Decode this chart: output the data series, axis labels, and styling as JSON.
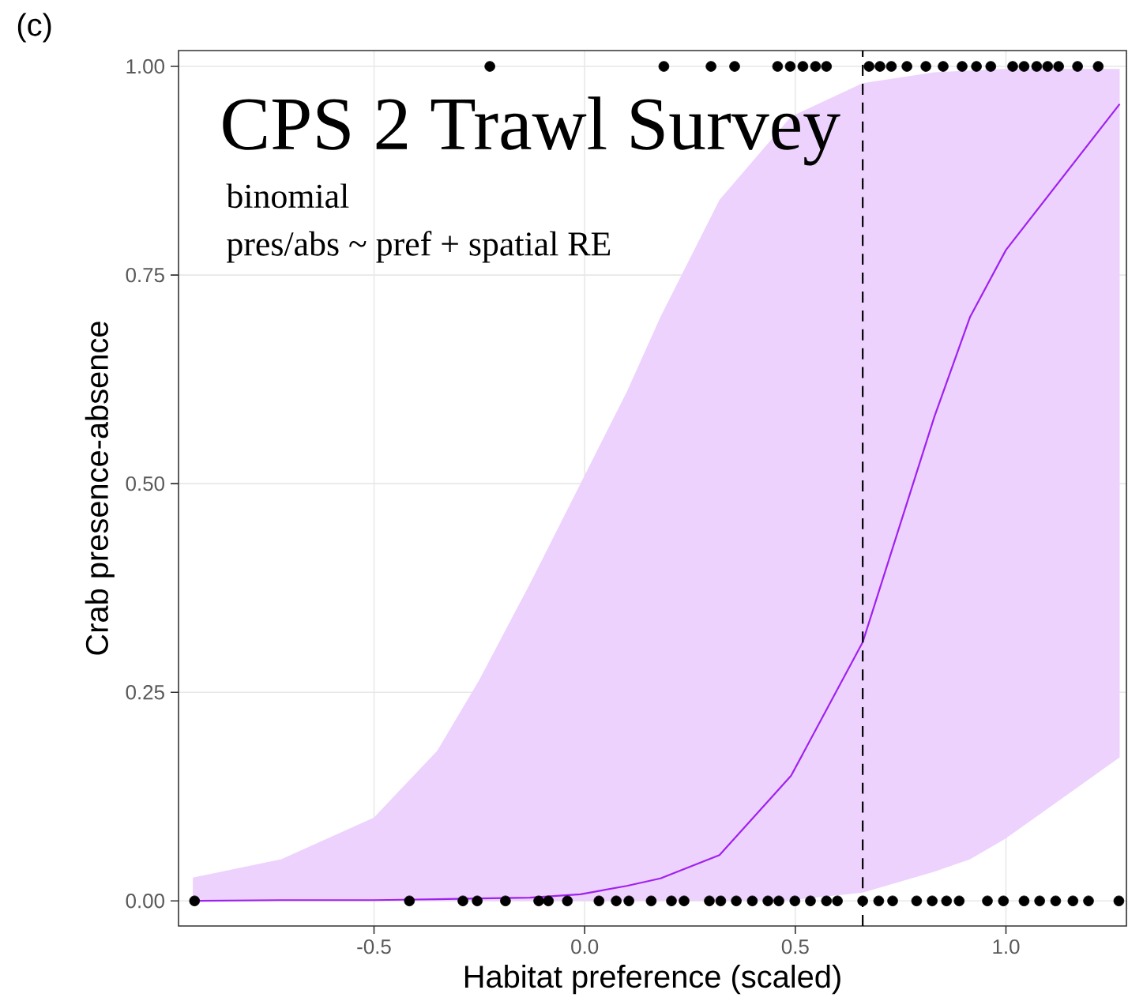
{
  "chart_data": {
    "type": "line",
    "title": "CPS 2 Trawl Survey",
    "subtitle": "binomial",
    "xlabel": "Habitat preference (scaled)",
    "ylabel": "Crab presence-absence",
    "annotations": [
      "pres/abs ~ pref + spatial RE",
      "(c)"
    ],
    "xlim": [
      -0.964,
      1.286
    ],
    "ylim": [
      -0.03,
      1.019
    ],
    "xticks": [
      {
        "value": -0.5,
        "label": "-0.5"
      },
      {
        "value": 0,
        "label": "0.0"
      },
      {
        "value": 0.5,
        "label": "0.5"
      },
      {
        "value": 1,
        "label": "1.0"
      }
    ],
    "yticks": [
      {
        "value": 0,
        "label": "0.00"
      },
      {
        "value": 0.25,
        "label": "0.25"
      },
      {
        "value": 0.5,
        "label": "0.50"
      },
      {
        "value": 0.75,
        "label": "0.75"
      },
      {
        "value": 1,
        "label": "1.00"
      }
    ],
    "grid": true,
    "ref_lines": [
      {
        "axis": "x",
        "value": 0.66,
        "label": null,
        "color": "#000000",
        "line_style": "dashed"
      }
    ],
    "series": [
      {
        "color": "#a020f0",
        "marker": "none",
        "line_style": "solid",
        "x": [
          -0.93,
          -0.72,
          -0.5,
          -0.35,
          -0.25,
          -0.13,
          -0.01,
          0.1,
          0.18,
          0.32,
          0.49,
          0.66,
          0.83,
          0.915,
          1.0,
          1.27
        ],
        "values": [
          0,
          0.001,
          0.001,
          0.002,
          0.003,
          0.004,
          0.008,
          0.018,
          0.027,
          0.055,
          0.15,
          0.31,
          0.58,
          0.7,
          0.78,
          0.955
        ],
        "lower": [
          0,
          0,
          0,
          0,
          0,
          0,
          0,
          0,
          0,
          0,
          0.001,
          0.01,
          0.035,
          0.05,
          0.075,
          0.172
        ],
        "upper": [
          0.028,
          0.05,
          0.1,
          0.18,
          0.265,
          0.38,
          0.5,
          0.61,
          0.7,
          0.84,
          0.94,
          0.98,
          0.993,
          0.995,
          0.997,
          0.997
        ]
      },
      {
        "type": "scatter",
        "color": "#000000",
        "marker": "circle",
        "x": [
          -0.225,
          0.188,
          0.3,
          0.356,
          0.458,
          0.488,
          0.518,
          0.548,
          0.574,
          0.675,
          0.701,
          0.728,
          0.765,
          0.81,
          0.851,
          0.896,
          0.93,
          0.964,
          1.016,
          1.043,
          1.073,
          1.099,
          1.125,
          1.17,
          1.219
        ],
        "values": [
          1,
          1,
          1,
          1,
          1,
          1,
          1,
          1,
          1,
          1,
          1,
          1,
          1,
          1,
          1,
          1,
          1,
          1,
          1,
          1,
          1,
          1,
          1,
          1,
          1
        ]
      },
      {
        "type": "scatter",
        "color": "#000000",
        "marker": "circle",
        "x": [
          -0.926,
          -0.416,
          -0.289,
          -0.255,
          -0.188,
          -0.109,
          -0.086,
          -0.041,
          0.034,
          0.075,
          0.105,
          0.158,
          0.206,
          0.236,
          0.296,
          0.323,
          0.36,
          0.398,
          0.435,
          0.461,
          0.499,
          0.536,
          0.574,
          0.6,
          0.66,
          0.698,
          0.731,
          0.788,
          0.825,
          0.859,
          0.889,
          0.956,
          0.994,
          1.043,
          1.08,
          1.118,
          1.159,
          1.196,
          1.268
        ],
        "values": [
          0,
          0,
          0,
          0,
          0,
          0,
          0,
          0,
          0,
          0,
          0,
          0,
          0,
          0,
          0,
          0,
          0,
          0,
          0,
          0,
          0,
          0,
          0,
          0,
          0,
          0,
          0,
          0,
          0,
          0,
          0,
          0,
          0,
          0,
          0,
          0,
          0,
          0,
          0
        ]
      }
    ]
  }
}
